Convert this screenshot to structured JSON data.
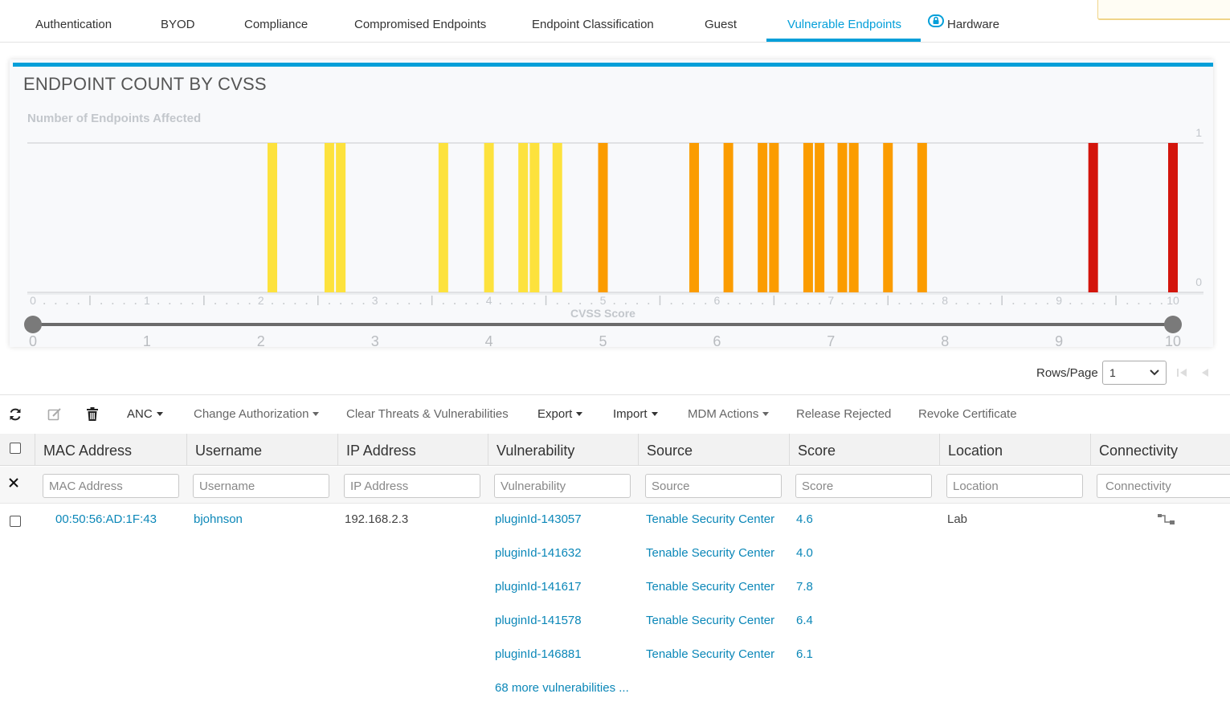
{
  "tabs": [
    {
      "label": "Authentication",
      "active": false
    },
    {
      "label": "BYOD",
      "active": false
    },
    {
      "label": "Compliance",
      "active": false
    },
    {
      "label": "Compromised Endpoints",
      "active": false
    },
    {
      "label": "Endpoint Classification",
      "active": false
    },
    {
      "label": "Guest",
      "active": false
    },
    {
      "label": "Vulnerable Endpoints",
      "active": true
    },
    {
      "label": "Hardware",
      "active": false,
      "icon": "lock-icon"
    }
  ],
  "card": {
    "title": "ENDPOINT COUNT BY CVSS",
    "accent_color": "#049fd9"
  },
  "chart_data": {
    "type": "bar",
    "title": "ENDPOINT COUNT BY CVSS",
    "ylabel": "Number of Endpoints Affected",
    "xlabel": "CVSS Score",
    "xlim": [
      0,
      10
    ],
    "ylim": [
      0,
      1
    ],
    "y_ticks": [
      0,
      1
    ],
    "x_ticks": [
      0,
      1,
      2,
      3,
      4,
      5,
      6,
      7,
      8,
      9,
      10
    ],
    "slider_range": [
      0,
      10
    ],
    "bars": [
      {
        "x": 2.1,
        "y": 1,
        "color": "#fde23d"
      },
      {
        "x": 2.6,
        "y": 1,
        "color": "#fde23d"
      },
      {
        "x": 2.7,
        "y": 1,
        "color": "#fde23d"
      },
      {
        "x": 3.6,
        "y": 1,
        "color": "#fde23d"
      },
      {
        "x": 4.0,
        "y": 1,
        "color": "#fde23d"
      },
      {
        "x": 4.3,
        "y": 1,
        "color": "#fde23d"
      },
      {
        "x": 4.4,
        "y": 1,
        "color": "#fde23d"
      },
      {
        "x": 4.6,
        "y": 1,
        "color": "#fde23d"
      },
      {
        "x": 5.0,
        "y": 1,
        "color": "#fb9c00"
      },
      {
        "x": 5.8,
        "y": 1,
        "color": "#fb9c00"
      },
      {
        "x": 6.1,
        "y": 1,
        "color": "#fb9c00"
      },
      {
        "x": 6.4,
        "y": 1,
        "color": "#fb9c00"
      },
      {
        "x": 6.5,
        "y": 1,
        "color": "#fb9c00"
      },
      {
        "x": 6.8,
        "y": 1,
        "color": "#fb9c00"
      },
      {
        "x": 6.9,
        "y": 1,
        "color": "#fb9c00"
      },
      {
        "x": 7.1,
        "y": 1,
        "color": "#fb9c00"
      },
      {
        "x": 7.2,
        "y": 1,
        "color": "#fb9c00"
      },
      {
        "x": 7.5,
        "y": 1,
        "color": "#fb9c00"
      },
      {
        "x": 7.8,
        "y": 1,
        "color": "#fb9c00"
      },
      {
        "x": 9.3,
        "y": 1,
        "color": "#d3150c"
      },
      {
        "x": 10.0,
        "y": 1,
        "color": "#d3150c"
      }
    ],
    "grid": false,
    "legend": "none"
  },
  "pagination": {
    "rows_label": "Rows/Page",
    "rows_value": "1"
  },
  "toolbar": {
    "anc": "ANC",
    "change_authorization": "Change Authorization",
    "clear_threats": "Clear Threats & Vulnerabilities",
    "export": "Export",
    "import": "Import",
    "mdm_actions": "MDM Actions",
    "release_rejected": "Release Rejected",
    "revoke_certificate": "Revoke Certificate"
  },
  "table": {
    "columns": [
      "MAC Address",
      "Username",
      "IP Address",
      "Vulnerability",
      "Source",
      "Score",
      "Location",
      "Connectivity"
    ],
    "filter_placeholders": [
      "MAC Address",
      "Username",
      "IP Address",
      "Vulnerability",
      "Source",
      "Score",
      "Location",
      "Connectivity"
    ],
    "row": {
      "mac": "00:50:56:AD:1F:43",
      "username": "bjohnson",
      "ip": "192.168.2.3",
      "location": "Lab",
      "vulnerabilities": [
        {
          "id": "pluginId-143057",
          "source": "Tenable Security Center",
          "score": "4.6"
        },
        {
          "id": "pluginId-141632",
          "source": "Tenable Security Center",
          "score": "4.0"
        },
        {
          "id": "pluginId-141617",
          "source": "Tenable Security Center",
          "score": "7.8"
        },
        {
          "id": "pluginId-141578",
          "source": "Tenable Security Center",
          "score": "6.4"
        },
        {
          "id": "pluginId-146881",
          "source": "Tenable Security Center",
          "score": "6.1"
        }
      ],
      "more": "68 more vulnerabilities ..."
    }
  }
}
